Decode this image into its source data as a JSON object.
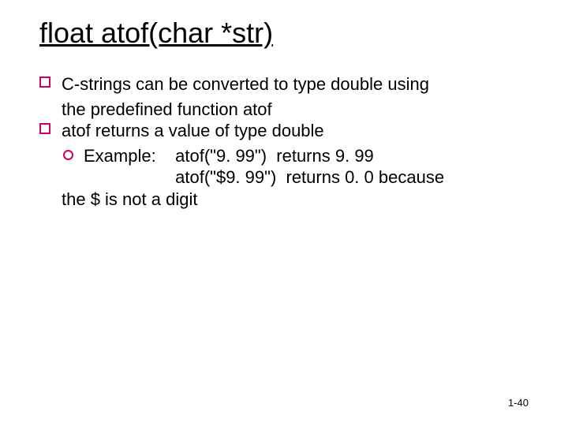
{
  "title": "float atof(char *str)",
  "bullets": {
    "b1_line1": "C-strings can be converted to type double using",
    "b1_line2": "the predefined function atof",
    "b2_line1": "atof  returns a value of type double",
    "sub_line1": "Example:    atof(\"9. 99\")  returns 9. 99",
    "sub_line2": "                   atof(\"$9. 99\")  returns 0. 0 because",
    "sub_line3": "the $ is not a digit"
  },
  "page_number": "1-40",
  "colors": {
    "text": "#000000",
    "bullet_border": "#cc0066",
    "background": "#ffffff"
  },
  "fonts": {
    "body_family": "Comic Sans MS",
    "title_size_pt": 36,
    "body_size_pt": 22,
    "pagenum_size_pt": 13
  }
}
